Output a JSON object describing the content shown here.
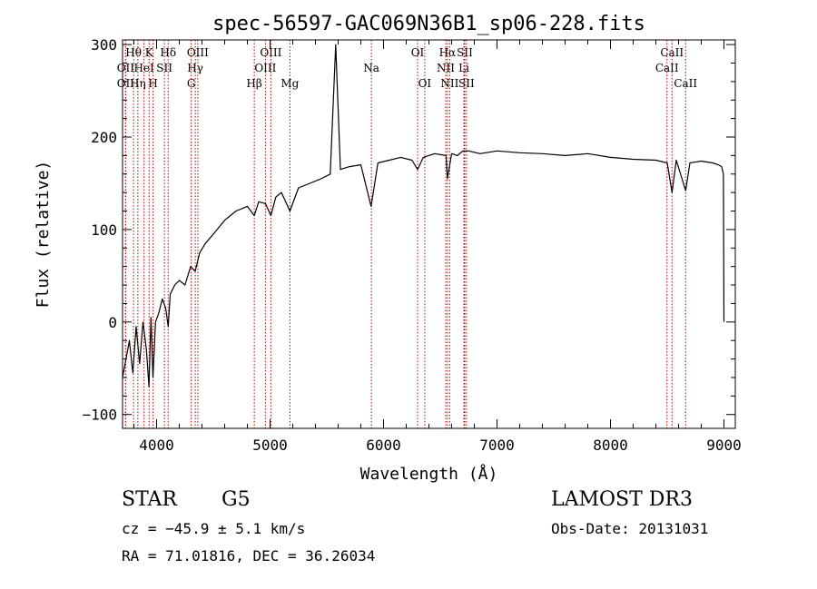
{
  "chart_data": {
    "type": "line",
    "title": "spec-56597-GAC069N36B1_sp06-228.fits",
    "xlabel": "Wavelength (Å)",
    "ylabel": "Flux (relative)",
    "xlim": [
      3700,
      9100
    ],
    "ylim": [
      -115,
      305
    ],
    "xticks": [
      4000,
      5000,
      6000,
      7000,
      8000,
      9000
    ],
    "xtick_labels": [
      "4000",
      "5000",
      "6000",
      "7000",
      "8000",
      "9000"
    ],
    "yticks": [
      -100,
      0,
      100,
      200,
      300
    ],
    "ytick_labels": [
      "−100",
      "0",
      "100",
      "200",
      "300"
    ],
    "grid": false,
    "line_color": "#000000",
    "marker_color": "#c00000",
    "series": [
      {
        "name": "flux",
        "x": [
          3700,
          3730,
          3760,
          3790,
          3820,
          3850,
          3880,
          3910,
          3933,
          3950,
          3968,
          3990,
          4020,
          4050,
          4080,
          4102,
          4120,
          4160,
          4200,
          4250,
          4300,
          4340,
          4380,
          4430,
          4500,
          4600,
          4700,
          4800,
          4861,
          4900,
          4960,
          5007,
          5050,
          5100,
          5175,
          5250,
          5350,
          5450,
          5530,
          5578,
          5620,
          5700,
          5800,
          5890,
          5950,
          6050,
          6150,
          6250,
          6300,
          6350,
          6450,
          6550,
          6563,
          6600,
          6650,
          6700,
          6750,
          6850,
          7000,
          7200,
          7400,
          7600,
          7800,
          8000,
          8200,
          8400,
          8500,
          8542,
          8580,
          8662,
          8700,
          8800,
          8900,
          8950,
          8980,
          8995,
          9000
        ],
        "values": [
          -60,
          -40,
          -20,
          -55,
          -5,
          -45,
          0,
          -30,
          -70,
          5,
          -60,
          0,
          10,
          25,
          15,
          -5,
          30,
          40,
          45,
          40,
          60,
          55,
          75,
          85,
          95,
          110,
          120,
          125,
          115,
          130,
          128,
          115,
          135,
          140,
          120,
          145,
          150,
          155,
          160,
          300,
          165,
          168,
          170,
          125,
          172,
          175,
          178,
          175,
          165,
          178,
          182,
          180,
          155,
          182,
          180,
          185,
          185,
          182,
          185,
          183,
          182,
          180,
          182,
          178,
          176,
          175,
          172,
          140,
          175,
          142,
          172,
          174,
          172,
          170,
          168,
          160,
          0
        ]
      }
    ],
    "lines": [
      {
        "name": "O II",
        "x": 3727,
        "label": "OII",
        "row": 2
      },
      {
        "name": "H-theta",
        "x": 3797,
        "label": "Hθ",
        "row": 0
      },
      {
        "name": "O II",
        "x": 3727,
        "label": "OII",
        "row": 1
      },
      {
        "name": "H-eta",
        "x": 3835,
        "label": "Hη",
        "row": 2
      },
      {
        "name": "He I",
        "x": 3889,
        "label": "HeI",
        "row": 1
      },
      {
        "name": "K",
        "x": 3934,
        "label": "K",
        "row": 0
      },
      {
        "name": "H",
        "x": 3969,
        "label": "H",
        "row": 2
      },
      {
        "name": "S II",
        "x": 4069,
        "label": "SII",
        "row": 1
      },
      {
        "name": "H-delta",
        "x": 4102,
        "label": "Hδ",
        "row": 0
      },
      {
        "name": "G",
        "x": 4305,
        "label": "G",
        "row": 2
      },
      {
        "name": "H-gamma",
        "x": 4341,
        "label": "Hγ",
        "row": 1
      },
      {
        "name": "O III",
        "x": 4363,
        "label": "OIII",
        "row": 0
      },
      {
        "name": "H-beta",
        "x": 4861,
        "label": "Hβ",
        "row": 2
      },
      {
        "name": "O III",
        "x": 4959,
        "label": "OIII",
        "row": 1
      },
      {
        "name": "O III",
        "x": 5007,
        "label": "OIII",
        "row": 0
      },
      {
        "name": "Mg",
        "x": 5175,
        "label": "Mg",
        "row": 2
      },
      {
        "name": "Na",
        "x": 5893,
        "label": "Na",
        "row": 1
      },
      {
        "name": "O I",
        "x": 6300,
        "label": "OI",
        "row": 0
      },
      {
        "name": "O I",
        "x": 6363,
        "label": "OI",
        "row": 2
      },
      {
        "name": "N II",
        "x": 6548,
        "label": "NII",
        "row": 1
      },
      {
        "name": "H-alpha",
        "x": 6563,
        "label": "Hα",
        "row": 0
      },
      {
        "name": "N II",
        "x": 6583,
        "label": "NII",
        "row": 2
      },
      {
        "name": "Li",
        "x": 6708,
        "label": "Li",
        "row": 1
      },
      {
        "name": "S II",
        "x": 6716,
        "label": "SII",
        "row": 0
      },
      {
        "name": "S II",
        "x": 6731,
        "label": "SII",
        "row": 2
      },
      {
        "name": "Ca II",
        "x": 8498,
        "label": "CaII",
        "row": 1
      },
      {
        "name": "Ca II",
        "x": 8542,
        "label": "CaII",
        "row": 0
      },
      {
        "name": "Ca II",
        "x": 8662,
        "label": "CaII",
        "row": 2
      }
    ]
  },
  "info": {
    "object_class": "STAR",
    "subclass": "G5",
    "survey": "LAMOST DR3",
    "redshift_text": "cz = −45.9 ± 5.1 km/s",
    "obs_date_text": "Obs-Date: 20131031",
    "coords_text": "RA =  71.01816, DEC =  36.26034"
  }
}
